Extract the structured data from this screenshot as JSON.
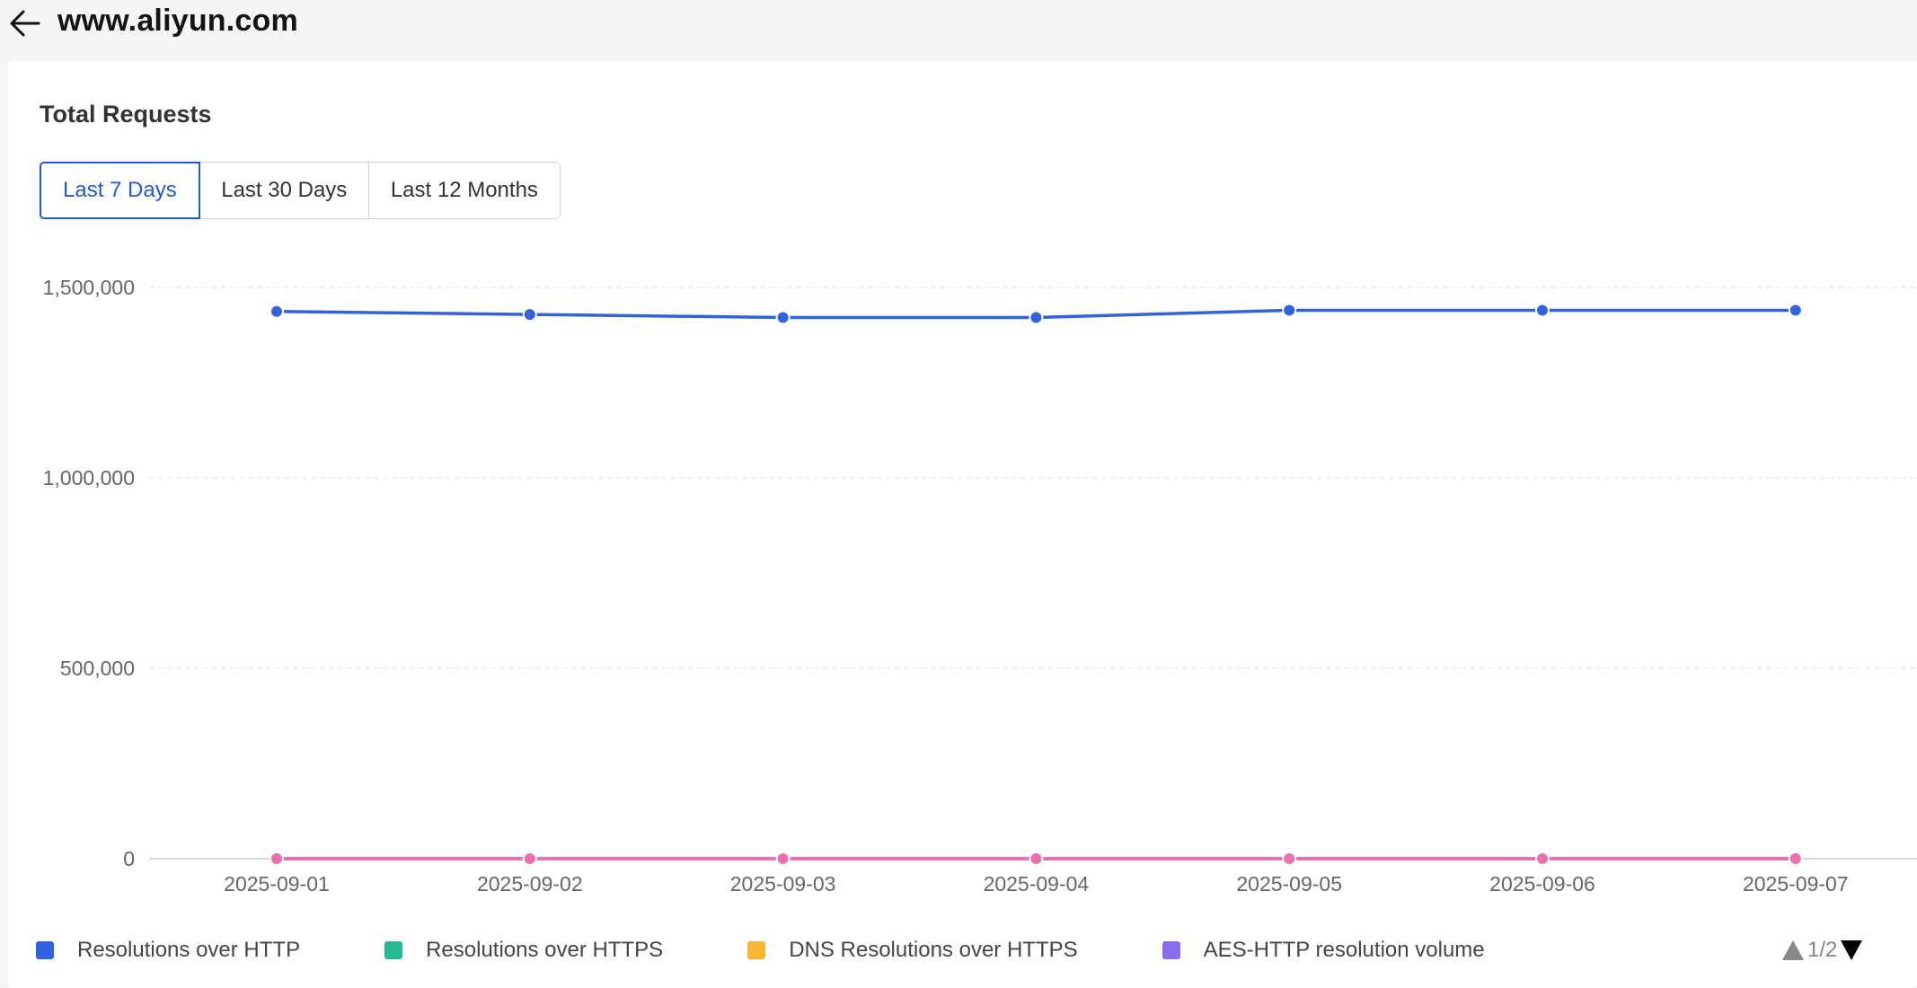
{
  "header": {
    "title": "www.aliyun.com",
    "back_icon": "arrow-left-icon"
  },
  "card": {
    "title": "Total Requests",
    "range_options": [
      "Last 7 Days",
      "Last 30 Days",
      "Last 12 Months"
    ],
    "active_range": "Last 7 Days"
  },
  "chart_data": {
    "type": "line",
    "title": "Total Requests",
    "categories": [
      "2025-09-01",
      "2025-09-02",
      "2025-09-03",
      "2025-09-04",
      "2025-09-05",
      "2025-09-06",
      "2025-09-07"
    ],
    "y_ticks": [
      "1,500,000",
      "1,000,000",
      "500,000",
      "0"
    ],
    "y_tick_values": [
      1500000,
      1000000,
      500000,
      0
    ],
    "ylim": [
      0,
      1500000
    ],
    "grid": true,
    "series": [
      {
        "name": "Resolutions over HTTP",
        "color": "#2f63e0",
        "values": [
          1437000,
          1429000,
          1421000,
          1421000,
          1440000,
          1440000,
          1440000
        ]
      },
      {
        "name": "Resolutions over HTTPS",
        "color": "#24b896",
        "values": [
          0,
          0,
          0,
          0,
          0,
          0,
          0
        ]
      },
      {
        "name": "DNS Resolutions over HTTPS",
        "color": "#f7b733",
        "values": [
          0,
          0,
          0,
          0,
          0,
          0,
          0
        ]
      },
      {
        "name": "AES-HTTP resolution volume",
        "color": "#8b6cf0",
        "values": [
          0,
          0,
          0,
          0,
          0,
          0,
          0
        ]
      },
      {
        "color": "#f06bb4",
        "values": [
          0,
          0,
          0,
          0,
          0,
          0,
          0
        ]
      }
    ],
    "legend_position": "bottom"
  },
  "legend": {
    "items": [
      {
        "label": "Resolutions over HTTP",
        "color": "#2f63e0"
      },
      {
        "label": "Resolutions over HTTPS",
        "color": "#24b896"
      },
      {
        "label": "DNS Resolutions over HTTPS",
        "color": "#f7b733"
      },
      {
        "label": "AES-HTTP resolution volume",
        "color": "#8b6cf0"
      }
    ],
    "page": "1/2"
  }
}
